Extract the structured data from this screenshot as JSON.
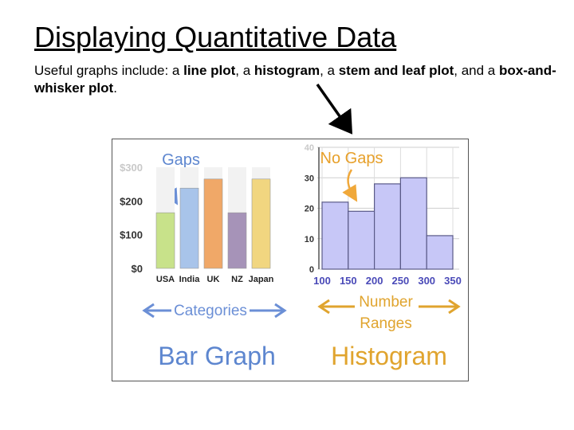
{
  "slide": {
    "title": "Displaying Quantitative Data",
    "intro": "Useful graphs include: a ",
    "item1": "line plot",
    "sep1": ", a ",
    "item2": "histogram",
    "sep2": ", a ",
    "item3": "stem and leaf plot",
    "sep3": ", and a ",
    "item4": "box-and-whisker plot",
    "end": "."
  },
  "chart_data": [
    {
      "type": "bar",
      "title": "Bar Graph",
      "annotation": "Gaps",
      "axis_caption": "Categories",
      "categories": [
        "USA",
        "India",
        "UK",
        "NZ",
        "Japan"
      ],
      "values": [
        165,
        238,
        265,
        165,
        265
      ],
      "colors": [
        "#c8e28a",
        "#a8c4ea",
        "#f0a868",
        "#a693b8",
        "#f1d680"
      ],
      "ytick_labels": [
        "$0",
        "$100",
        "$200",
        "$300"
      ],
      "ylim": [
        0,
        300
      ]
    },
    {
      "type": "bar",
      "title": "Histogram",
      "annotation": "No Gaps",
      "axis_caption_line1": "Number",
      "axis_caption_line2": "Ranges",
      "bin_edges": [
        100,
        150,
        200,
        250,
        300,
        350
      ],
      "values": [
        22,
        19,
        28,
        30,
        11
      ],
      "color": "#c7c7f7",
      "yticks": [
        0,
        10,
        20,
        30,
        40
      ],
      "ylim": [
        0,
        40
      ]
    }
  ]
}
